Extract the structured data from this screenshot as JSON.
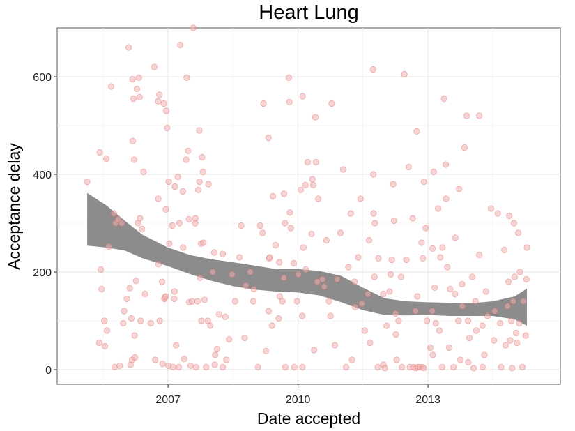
{
  "chart_data": {
    "type": "scatter",
    "title": "Heart Lung",
    "xlabel": "Date accepted",
    "ylabel": "Acceptance delay",
    "x_ticks": [
      "2007",
      "2010",
      "2013"
    ],
    "y_ticks": [
      "0",
      "200",
      "400",
      "600"
    ],
    "xlim": [
      "2004-06-10",
      "2016-01-22"
    ],
    "ylim": [
      -30,
      700
    ],
    "grid": true,
    "point_color": "#f0b0b0",
    "point_edge_color": "#e06060",
    "smooth_band_color": "#8c8c8c",
    "points": [
      {
        "x": "2005-02-18",
        "y": 385
      },
      {
        "x": "2005-05-31",
        "y": 55
      },
      {
        "x": "2005-06-04",
        "y": 445
      },
      {
        "x": "2005-06-13",
        "y": 205
      },
      {
        "x": "2005-06-20",
        "y": 165
      },
      {
        "x": "2005-07-13",
        "y": 100
      },
      {
        "x": "2005-07-18",
        "y": 48
      },
      {
        "x": "2005-07-30",
        "y": 432
      },
      {
        "x": "2005-08-04",
        "y": 80
      },
      {
        "x": "2005-08-20",
        "y": 252
      },
      {
        "x": "2005-09-08",
        "y": 580
      },
      {
        "x": "2005-10-01",
        "y": 320
      },
      {
        "x": "2005-10-08",
        "y": 5
      },
      {
        "x": "2005-10-16",
        "y": 300
      },
      {
        "x": "2005-11-07",
        "y": 308
      },
      {
        "x": "2005-11-19",
        "y": 8
      },
      {
        "x": "2005-12-06",
        "y": 300
      },
      {
        "x": "2005-12-19",
        "y": 95
      },
      {
        "x": "2005-12-26",
        "y": 120
      },
      {
        "x": "2006-01-19",
        "y": 145
      },
      {
        "x": "2006-02-03",
        "y": 660
      },
      {
        "x": "2006-02-13",
        "y": 167
      },
      {
        "x": "2006-02-19",
        "y": 10
      },
      {
        "x": "2006-02-25",
        "y": 105
      },
      {
        "x": "2006-03-04",
        "y": 20
      },
      {
        "x": "2006-03-07",
        "y": 595
      },
      {
        "x": "2006-03-09",
        "y": 468
      },
      {
        "x": "2006-03-15",
        "y": 555
      },
      {
        "x": "2006-03-21",
        "y": 430
      },
      {
        "x": "2006-03-25",
        "y": 70
      },
      {
        "x": "2006-03-28",
        "y": 25
      },
      {
        "x": "2006-04-07",
        "y": 182
      },
      {
        "x": "2006-04-14",
        "y": 575
      },
      {
        "x": "2006-04-22",
        "y": 300
      },
      {
        "x": "2006-04-30",
        "y": 598
      },
      {
        "x": "2006-05-06",
        "y": 558
      },
      {
        "x": "2006-05-10",
        "y": 310
      },
      {
        "x": "2006-05-15",
        "y": 100
      },
      {
        "x": "2006-05-27",
        "y": 288
      },
      {
        "x": "2006-06-09",
        "y": 405
      },
      {
        "x": "2006-06-21",
        "y": 155
      },
      {
        "x": "2006-08-09",
        "y": 95
      },
      {
        "x": "2006-09-08",
        "y": 620
      },
      {
        "x": "2006-09-15",
        "y": 20
      },
      {
        "x": "2006-10-10",
        "y": 550
      },
      {
        "x": "2006-10-11",
        "y": 350
      },
      {
        "x": "2006-10-13",
        "y": 216
      },
      {
        "x": "2006-10-20",
        "y": 563
      },
      {
        "x": "2006-10-23",
        "y": 100
      },
      {
        "x": "2006-11-12",
        "y": 180
      },
      {
        "x": "2006-11-15",
        "y": 12
      },
      {
        "x": "2006-11-26",
        "y": 545
      },
      {
        "x": "2006-12-01",
        "y": 145
      },
      {
        "x": "2006-12-05",
        "y": 148
      },
      {
        "x": "2006-12-12",
        "y": 150
      },
      {
        "x": "2006-12-13",
        "y": 328
      },
      {
        "x": "2006-12-18",
        "y": 530
      },
      {
        "x": "2006-12-25",
        "y": 495
      },
      {
        "x": "2007-01-04",
        "y": 8
      },
      {
        "x": "2007-01-07",
        "y": 385
      },
      {
        "x": "2007-01-11",
        "y": 258
      },
      {
        "x": "2007-02-06",
        "y": 295
      },
      {
        "x": "2007-02-13",
        "y": 5
      },
      {
        "x": "2007-02-21",
        "y": 145
      },
      {
        "x": "2007-02-24",
        "y": 160
      },
      {
        "x": "2007-02-27",
        "y": 375
      },
      {
        "x": "2007-03-10",
        "y": 50
      },
      {
        "x": "2007-03-25",
        "y": 395
      },
      {
        "x": "2007-04-02",
        "y": 5
      },
      {
        "x": "2007-04-07",
        "y": 300
      },
      {
        "x": "2007-04-14",
        "y": 665
      },
      {
        "x": "2007-05-06",
        "y": 365
      },
      {
        "x": "2007-05-08",
        "y": 250
      },
      {
        "x": "2007-05-17",
        "y": 22
      },
      {
        "x": "2007-06-03",
        "y": 430
      },
      {
        "x": "2007-06-07",
        "y": 598
      },
      {
        "x": "2007-06-19",
        "y": 448
      },
      {
        "x": "2007-06-27",
        "y": 308
      },
      {
        "x": "2007-06-28",
        "y": 138
      },
      {
        "x": "2007-07-10",
        "y": 8
      },
      {
        "x": "2007-07-23",
        "y": 140
      },
      {
        "x": "2007-08-02",
        "y": 700
      },
      {
        "x": "2007-08-18",
        "y": 300
      },
      {
        "x": "2007-08-20",
        "y": 310
      },
      {
        "x": "2007-08-25",
        "y": 5
      },
      {
        "x": "2007-09-06",
        "y": 140
      },
      {
        "x": "2007-09-13",
        "y": 368
      },
      {
        "x": "2007-09-21",
        "y": 490
      },
      {
        "x": "2007-09-23",
        "y": 385
      },
      {
        "x": "2007-09-28",
        "y": 188
      },
      {
        "x": "2007-10-06",
        "y": 258
      },
      {
        "x": "2007-10-09",
        "y": 100
      },
      {
        "x": "2007-10-15",
        "y": 435
      },
      {
        "x": "2007-10-23",
        "y": 405
      },
      {
        "x": "2007-10-26",
        "y": 260
      },
      {
        "x": "2007-11-05",
        "y": 143
      },
      {
        "x": "2007-11-18",
        "y": 5
      },
      {
        "x": "2007-12-03",
        "y": 100
      },
      {
        "x": "2007-12-08",
        "y": 380
      },
      {
        "x": "2007-12-23",
        "y": 90
      },
      {
        "x": "2008-01-13",
        "y": 200
      },
      {
        "x": "2008-01-25",
        "y": 240
      },
      {
        "x": "2008-01-30",
        "y": 10
      },
      {
        "x": "2008-02-03",
        "y": 30
      },
      {
        "x": "2008-02-19",
        "y": 42
      },
      {
        "x": "2008-03-07",
        "y": 113
      },
      {
        "x": "2008-04-06",
        "y": 5
      },
      {
        "x": "2008-04-06",
        "y": 237
      },
      {
        "x": "2008-04-28",
        "y": 108
      },
      {
        "x": "2008-05-07",
        "y": 20
      },
      {
        "x": "2008-05-30",
        "y": 62
      },
      {
        "x": "2008-06-24",
        "y": 195
      },
      {
        "x": "2008-07-20",
        "y": 140
      },
      {
        "x": "2008-08-25",
        "y": 230
      },
      {
        "x": "2008-09-09",
        "y": 295
      },
      {
        "x": "2008-10-08",
        "y": 65
      },
      {
        "x": "2008-10-19",
        "y": 172
      },
      {
        "x": "2008-11-24",
        "y": 200
      },
      {
        "x": "2008-12-21",
        "y": 140
      },
      {
        "x": "2008-12-25",
        "y": 165
      },
      {
        "x": "2009-01-28",
        "y": 5
      },
      {
        "x": "2009-02-16",
        "y": 295
      },
      {
        "x": "2009-03-08",
        "y": 280
      },
      {
        "x": "2009-03-16",
        "y": 545
      },
      {
        "x": "2009-04-06",
        "y": 38
      },
      {
        "x": "2009-04-27",
        "y": 475
      },
      {
        "x": "2009-04-28",
        "y": 120
      },
      {
        "x": "2009-05-03",
        "y": 228
      },
      {
        "x": "2009-05-06",
        "y": 230
      },
      {
        "x": "2009-05-27",
        "y": 90
      },
      {
        "x": "2009-06-03",
        "y": 355
      },
      {
        "x": "2009-06-25",
        "y": 255
      },
      {
        "x": "2009-07-22",
        "y": 105
      },
      {
        "x": "2009-07-27",
        "y": 220
      },
      {
        "x": "2009-07-30",
        "y": 150
      },
      {
        "x": "2009-08-23",
        "y": 140
      },
      {
        "x": "2009-09-03",
        "y": 188
      },
      {
        "x": "2009-09-05",
        "y": 360
      },
      {
        "x": "2009-09-13",
        "y": 300
      },
      {
        "x": "2009-09-16",
        "y": 5
      },
      {
        "x": "2009-10-15",
        "y": 598
      },
      {
        "x": "2009-10-20",
        "y": 548
      },
      {
        "x": "2009-10-24",
        "y": 322
      },
      {
        "x": "2009-11-01",
        "y": 290
      },
      {
        "x": "2009-11-26",
        "y": 218
      },
      {
        "x": "2009-12-01",
        "y": 5
      },
      {
        "x": "2009-12-24",
        "y": 140
      },
      {
        "x": "2010-01-03",
        "y": 195
      },
      {
        "x": "2010-01-24",
        "y": 368
      },
      {
        "x": "2010-02-06",
        "y": 110
      },
      {
        "x": "2010-02-07",
        "y": 5
      },
      {
        "x": "2010-02-08",
        "y": 560
      },
      {
        "x": "2010-02-16",
        "y": 250
      },
      {
        "x": "2010-03-04",
        "y": 378
      },
      {
        "x": "2010-03-07",
        "y": 205
      },
      {
        "x": "2010-03-23",
        "y": 425
      },
      {
        "x": "2010-04-25",
        "y": 278
      },
      {
        "x": "2010-05-02",
        "y": 390
      },
      {
        "x": "2010-05-09",
        "y": 378
      },
      {
        "x": "2010-05-17",
        "y": 40
      },
      {
        "x": "2010-05-27",
        "y": 517
      },
      {
        "x": "2010-06-01",
        "y": 425
      },
      {
        "x": "2010-06-12",
        "y": 180
      },
      {
        "x": "2010-06-21",
        "y": 350
      },
      {
        "x": "2010-07-26",
        "y": 185
      },
      {
        "x": "2010-08-10",
        "y": 170
      },
      {
        "x": "2010-08-29",
        "y": 265
      },
      {
        "x": "2010-09-19",
        "y": 140
      },
      {
        "x": "2010-10-01",
        "y": 110
      },
      {
        "x": "2010-10-11",
        "y": 545
      },
      {
        "x": "2010-11-08",
        "y": 50
      },
      {
        "x": "2010-11-25",
        "y": 185
      },
      {
        "x": "2010-12-25",
        "y": 280
      },
      {
        "x": "2011-01-16",
        "y": 410
      },
      {
        "x": "2011-02-11",
        "y": 5
      },
      {
        "x": "2011-03-02",
        "y": 210
      },
      {
        "x": "2011-03-22",
        "y": 320
      },
      {
        "x": "2011-04-01",
        "y": 20
      },
      {
        "x": "2011-04-23",
        "y": 180
      },
      {
        "x": "2011-04-28",
        "y": 128
      },
      {
        "x": "2011-05-23",
        "y": 230
      },
      {
        "x": "2011-06-12",
        "y": 350
      },
      {
        "x": "2011-06-23",
        "y": 135
      },
      {
        "x": "2011-07-17",
        "y": 80
      },
      {
        "x": "2011-08-13",
        "y": 155
      },
      {
        "x": "2011-08-22",
        "y": 265
      },
      {
        "x": "2011-08-31",
        "y": 55
      },
      {
        "x": "2011-09-26",
        "y": 615
      },
      {
        "x": "2011-09-29",
        "y": 400
      },
      {
        "x": "2011-09-30",
        "y": 320
      },
      {
        "x": "2011-10-07",
        "y": 190
      },
      {
        "x": "2011-10-11",
        "y": 300
      },
      {
        "x": "2011-11-05",
        "y": 5
      },
      {
        "x": "2011-11-10",
        "y": 228
      },
      {
        "x": "2011-12-21",
        "y": 155
      },
      {
        "x": "2011-12-22",
        "y": 10
      },
      {
        "x": "2012-01-03",
        "y": 3
      },
      {
        "x": "2012-01-17",
        "y": 90
      },
      {
        "x": "2012-02-12",
        "y": 160
      },
      {
        "x": "2012-02-21",
        "y": 195
      },
      {
        "x": "2012-03-02",
        "y": 225
      },
      {
        "x": "2012-03-14",
        "y": 380
      },
      {
        "x": "2012-03-21",
        "y": 305
      },
      {
        "x": "2012-04-03",
        "y": 115
      },
      {
        "x": "2012-04-05",
        "y": 72
      },
      {
        "x": "2012-04-12",
        "y": 20
      },
      {
        "x": "2012-04-28",
        "y": 100
      },
      {
        "x": "2012-05-19",
        "y": 190
      },
      {
        "x": "2012-05-26",
        "y": 5
      },
      {
        "x": "2012-06-16",
        "y": 605
      },
      {
        "x": "2012-07-03",
        "y": 225
      },
      {
        "x": "2012-07-22",
        "y": 415
      },
      {
        "x": "2012-08-02",
        "y": 5
      },
      {
        "x": "2012-08-25",
        "y": 310
      },
      {
        "x": "2012-08-31",
        "y": 5
      },
      {
        "x": "2012-09-19",
        "y": 120
      },
      {
        "x": "2012-09-21",
        "y": 3
      },
      {
        "x": "2012-09-28",
        "y": 488
      },
      {
        "x": "2012-10-03",
        "y": 150
      },
      {
        "x": "2012-10-08",
        "y": 5
      },
      {
        "x": "2012-10-27",
        "y": 5
      },
      {
        "x": "2012-11-08",
        "y": 260
      },
      {
        "x": "2012-11-17",
        "y": 5
      },
      {
        "x": "2012-11-19",
        "y": 228
      },
      {
        "x": "2012-11-25",
        "y": 3
      },
      {
        "x": "2012-11-28",
        "y": 385
      },
      {
        "x": "2012-12-12",
        "y": 290
      },
      {
        "x": "2012-12-24",
        "y": 100
      },
      {
        "x": "2013-01-21",
        "y": 45
      },
      {
        "x": "2013-02-06",
        "y": 120
      },
      {
        "x": "2013-02-09",
        "y": 248
      },
      {
        "x": "2013-02-11",
        "y": 30
      },
      {
        "x": "2013-02-19",
        "y": 405
      },
      {
        "x": "2013-02-26",
        "y": 168
      },
      {
        "x": "2013-03-07",
        "y": 95
      },
      {
        "x": "2013-03-27",
        "y": 330
      },
      {
        "x": "2013-04-07",
        "y": 80
      },
      {
        "x": "2013-04-15",
        "y": 230
      },
      {
        "x": "2013-05-01",
        "y": 5
      },
      {
        "x": "2013-05-03",
        "y": 250
      },
      {
        "x": "2013-05-16",
        "y": 555
      },
      {
        "x": "2013-05-31",
        "y": 420
      },
      {
        "x": "2013-06-03",
        "y": 350
      },
      {
        "x": "2013-06-13",
        "y": 210
      },
      {
        "x": "2013-06-28",
        "y": 45
      },
      {
        "x": "2013-07-07",
        "y": 165
      },
      {
        "x": "2013-08-04",
        "y": 5
      },
      {
        "x": "2013-08-16",
        "y": 155
      },
      {
        "x": "2013-08-20",
        "y": 270
      },
      {
        "x": "2013-09-14",
        "y": 100
      },
      {
        "x": "2013-09-20",
        "y": 370
      },
      {
        "x": "2013-10-02",
        "y": 20
      },
      {
        "x": "2013-10-15",
        "y": 175
      },
      {
        "x": "2013-10-18",
        "y": 130
      },
      {
        "x": "2013-11-05",
        "y": 455
      },
      {
        "x": "2013-11-23",
        "y": 520
      },
      {
        "x": "2013-12-04",
        "y": 100
      },
      {
        "x": "2013-12-06",
        "y": 15
      },
      {
        "x": "2013-12-16",
        "y": 65
      },
      {
        "x": "2014-01-10",
        "y": 190
      },
      {
        "x": "2014-01-21",
        "y": 3
      },
      {
        "x": "2014-02-05",
        "y": 140
      },
      {
        "x": "2014-02-11",
        "y": 80
      },
      {
        "x": "2014-03-09",
        "y": 520
      },
      {
        "x": "2014-03-10",
        "y": 235
      },
      {
        "x": "2014-04-05",
        "y": 90
      },
      {
        "x": "2014-04-06",
        "y": 5
      },
      {
        "x": "2014-04-21",
        "y": 30
      },
      {
        "x": "2014-05-05",
        "y": 160
      },
      {
        "x": "2014-05-18",
        "y": 110
      },
      {
        "x": "2014-06-16",
        "y": 330
      },
      {
        "x": "2014-07-11",
        "y": 60
      },
      {
        "x": "2014-07-18",
        "y": 120
      },
      {
        "x": "2014-08-12",
        "y": 320
      },
      {
        "x": "2014-09-01",
        "y": 95
      },
      {
        "x": "2014-09-09",
        "y": 5
      },
      {
        "x": "2014-10-07",
        "y": 245
      },
      {
        "x": "2014-10-17",
        "y": 50
      },
      {
        "x": "2014-11-03",
        "y": 130
      },
      {
        "x": "2014-11-11",
        "y": 180
      },
      {
        "x": "2014-11-17",
        "y": 315
      },
      {
        "x": "2014-11-25",
        "y": 60
      },
      {
        "x": "2014-12-05",
        "y": 100
      },
      {
        "x": "2014-12-12",
        "y": 3
      },
      {
        "x": "2014-12-21",
        "y": 140
      },
      {
        "x": "2014-12-26",
        "y": 300
      },
      {
        "x": "2015-01-01",
        "y": 190
      },
      {
        "x": "2015-01-15",
        "y": 75
      },
      {
        "x": "2015-01-21",
        "y": 55
      },
      {
        "x": "2015-02-01",
        "y": 280
      },
      {
        "x": "2015-02-10",
        "y": 95
      },
      {
        "x": "2015-02-15",
        "y": 200
      },
      {
        "x": "2015-03-07",
        "y": 5
      },
      {
        "x": "2015-03-16",
        "y": 140
      },
      {
        "x": "2015-04-05",
        "y": 70
      },
      {
        "x": "2015-04-10",
        "y": 185
      },
      {
        "x": "2015-04-15",
        "y": 250
      }
    ],
    "smooth_band": {
      "x": [
        "2005-02-18",
        "2005-08-01",
        "2006-01-01",
        "2006-06-01",
        "2007-01-01",
        "2007-07-01",
        "2008-01-01",
        "2008-07-01",
        "2009-01-01",
        "2009-07-01",
        "2010-01-01",
        "2010-07-01",
        "2011-01-01",
        "2011-07-01",
        "2012-01-01",
        "2012-07-01",
        "2013-01-01",
        "2013-07-01",
        "2014-01-01",
        "2014-07-01",
        "2015-01-01",
        "2015-04-15"
      ],
      "lower": [
        254,
        250,
        244,
        228,
        212,
        196,
        182,
        171,
        164,
        160,
        158,
        152,
        138,
        122,
        112,
        111,
        112,
        110,
        110,
        110,
        103,
        90
      ],
      "upper": [
        362,
        336,
        305,
        276,
        250,
        235,
        226,
        220,
        213,
        206,
        206,
        202,
        192,
        168,
        146,
        140,
        138,
        137,
        136,
        140,
        150,
        166
      ]
    }
  }
}
